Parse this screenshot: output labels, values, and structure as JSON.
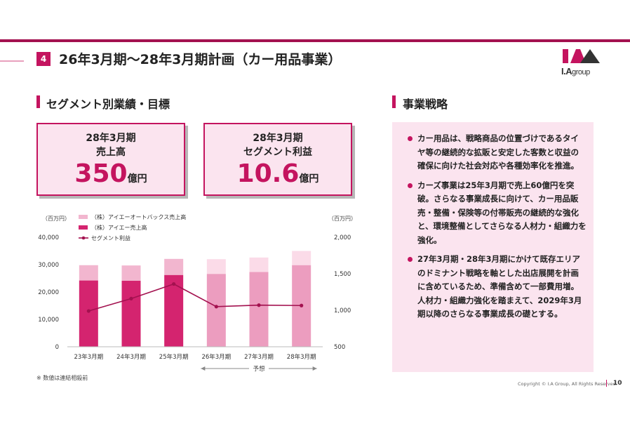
{
  "header": {
    "page_number": "4",
    "title": "26年3月期〜28年3月期計画（カー用品事業）",
    "logo": {
      "letters": "I.A",
      "suffix": "group"
    }
  },
  "left_section": {
    "title": "セグメント別業績・目標",
    "kpis": [
      {
        "line1": "28年3月期",
        "line2": "売上高",
        "value": "350",
        "unit": "億円"
      },
      {
        "line1": "28年3月期",
        "line2": "セグメント利益",
        "value": "10.6",
        "unit": "億円"
      }
    ]
  },
  "right_section": {
    "title": "事業戦略",
    "bullets": [
      "カー用品は、戦略商品の位置づけであるタイヤ等の継続的な拡販と安定した客数と収益の確保に向けた社会対応や各種効率化を推進。",
      "カーズ事業は25年3月期で売上60億円を突破。さらなる事業成長に向けて、カー用品販売・整備・保険等の付帯販売の継続的な強化と、環境整備としてさらなる人材力・組織力を強化。",
      "27年3月期・28年3月期にかけて既存エリアのドミナント戦略を軸とした出店展開を計画に含めているため、準備含めて一部費用増。人材力・組織力強化を踏まえて、2029年3月期以降のさらなる事業成長の礎とする。"
    ]
  },
  "chart_data": {
    "type": "bar",
    "left_axis_unit": "（百万円）",
    "right_axis_unit": "（百万円）",
    "categories": [
      "23年3月期",
      "24年3月期",
      "25年3月期",
      "26年3月期",
      "27年3月期",
      "28年3月期"
    ],
    "forecast_label": "予想",
    "forecast_from_index": 3,
    "y_left": {
      "min": 0,
      "max": 40000,
      "ticks": [
        0,
        10000,
        20000,
        30000,
        40000
      ],
      "tick_labels": [
        "0",
        "10,000",
        "20,000",
        "30,000",
        "40,000"
      ]
    },
    "y_right": {
      "min": 500,
      "max": 2000,
      "ticks": [
        500,
        1000,
        1500,
        2000
      ],
      "tick_labels": [
        "500",
        "1,000",
        "1,500",
        "2,000"
      ]
    },
    "series": [
      {
        "name": "（株）アイエーオートバックス売上高",
        "kind": "bar-total",
        "values": [
          29800,
          29700,
          32100,
          32000,
          32600,
          35000
        ],
        "color": "#f2b6cf",
        "forecast_color": "#fbdbe8"
      },
      {
        "name": "（株）アイエー売上高",
        "kind": "bar-inner",
        "values": [
          24200,
          24100,
          26200,
          26600,
          27300,
          29800
        ],
        "color": "#d4246f",
        "forecast_color": "#ec9dbf"
      },
      {
        "name": "セグメント利益",
        "kind": "line",
        "axis": "right",
        "values": [
          990,
          1160,
          1360,
          1050,
          1070,
          1065
        ],
        "color": "#a3114f"
      }
    ],
    "note": "※ 数値は連結相殺前"
  },
  "footer": {
    "copyright": "Copyright © I.A Group, All Rights Reserved.",
    "page": "10"
  }
}
